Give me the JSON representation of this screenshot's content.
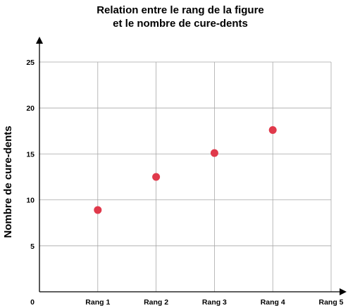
{
  "chart_data": {
    "type": "scatter",
    "title_lines": [
      "Relation entre le rang de la figure",
      "et le nombre de cure-dents"
    ],
    "xlabel": "",
    "ylabel": "Nombre de cure-dents",
    "origin_label": "0",
    "x_categories": [
      "Rang 1",
      "Rang 2",
      "Rang 3",
      "Rang 4",
      "Rang 5"
    ],
    "x_values": [
      1,
      2,
      3,
      4,
      5
    ],
    "xlim": [
      0,
      5
    ],
    "ylim": [
      0,
      25
    ],
    "y_ticks": [
      5,
      10,
      15,
      20,
      25
    ],
    "grid": true,
    "series": [
      {
        "points": [
          {
            "x": 1,
            "y": 8.9
          },
          {
            "x": 2,
            "y": 12.5
          },
          {
            "x": 3,
            "y": 15.1
          },
          {
            "x": 4,
            "y": 17.6
          }
        ],
        "color": "#e0394b"
      }
    ]
  }
}
